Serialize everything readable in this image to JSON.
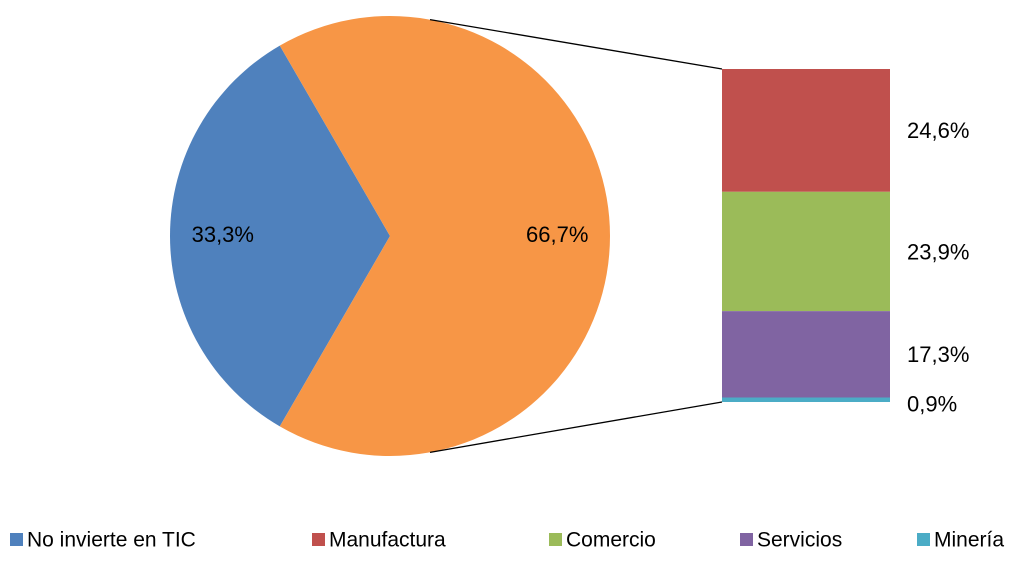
{
  "chart_data": {
    "type": "pie-of-bar",
    "categories": [
      "No invierte en TIC",
      null
    ],
    "values": [
      33.3,
      66.7
    ],
    "value_labels": [
      "33,3%",
      "66,7%"
    ],
    "colors": [
      "#4f81bd",
      "#f79646"
    ],
    "bar": {
      "categories": [
        "Manufactura",
        "Comercio",
        "Servicios",
        "Minería"
      ],
      "values": [
        24.6,
        23.9,
        17.3,
        0.9
      ],
      "value_labels": [
        "24,6%",
        "23,9%",
        "17,3%",
        "0,9%"
      ],
      "colors": [
        "#c0504d",
        "#9bbb59",
        "#8064a2",
        "#4bacc6"
      ]
    },
    "legend": "bottom"
  }
}
